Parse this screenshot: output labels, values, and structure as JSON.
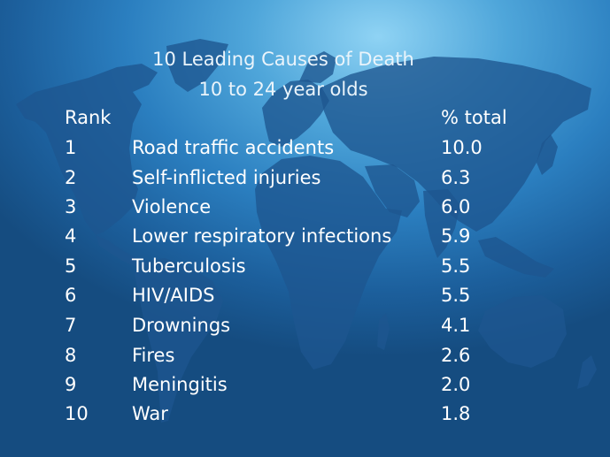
{
  "slide": {
    "title_line1": "10 Leading Causes of Death",
    "title_line2": "10 to 24 year olds",
    "header": {
      "rank": "Rank",
      "percent": "% total"
    },
    "rows": [
      {
        "rank": "1",
        "cause": "Road traffic accidents",
        "percent": "10.0"
      },
      {
        "rank": "2",
        "cause": "Self-inflicted injuries",
        "percent": "6.3"
      },
      {
        "rank": "3",
        "cause": "Violence",
        "percent": "6.0"
      },
      {
        "rank": "4",
        "cause": "Lower respiratory infections",
        "percent": "5.9"
      },
      {
        "rank": "5",
        "cause": "Tuberculosis",
        "percent": "5.5"
      },
      {
        "rank": "6",
        "cause": "HIV/AIDS",
        "percent": "5.5"
      },
      {
        "rank": "7",
        "cause": "Drownings",
        "percent": "4.1"
      },
      {
        "rank": "8",
        "cause": "Fires",
        "percent": "2.6"
      },
      {
        "rank": "9",
        "cause": "Meningitis",
        "percent": "2.0"
      },
      {
        "rank": "10",
        "cause": "War",
        "percent": "1.8"
      }
    ]
  },
  "colors": {
    "background_light": "#8fd3f4",
    "background_dark": "#154c80",
    "land": "#1d5690",
    "text": "#ffffff"
  }
}
